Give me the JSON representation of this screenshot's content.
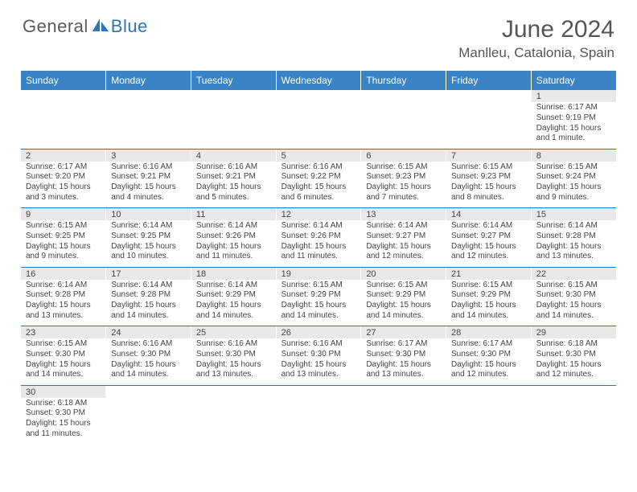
{
  "brand": {
    "part1": "General",
    "part2": "Blue"
  },
  "title": "June 2024",
  "location": "Manlleu, Catalonia, Spain",
  "colors": {
    "header_bg": "#3a83c4",
    "header_text": "#ffffff",
    "daynum_bg": "#e8e8e8",
    "text": "#444444",
    "rule": "#2d74b8",
    "brand_gray": "#5a5a5a",
    "brand_blue": "#2d74b8",
    "title_color": "#555555"
  },
  "typography": {
    "title_fontsize": 30,
    "location_fontsize": 17,
    "dayhead_fontsize": 12,
    "daynum_fontsize": 11,
    "body_fontsize": 10
  },
  "day_headers": [
    "Sunday",
    "Monday",
    "Tuesday",
    "Wednesday",
    "Thursday",
    "Friday",
    "Saturday"
  ],
  "weeks": [
    [
      null,
      null,
      null,
      null,
      null,
      null,
      {
        "n": "1",
        "sunrise": "Sunrise: 6:17 AM",
        "sunset": "Sunset: 9:19 PM",
        "daylight1": "Daylight: 15 hours",
        "daylight2": "and 1 minute."
      }
    ],
    [
      {
        "n": "2",
        "sunrise": "Sunrise: 6:17 AM",
        "sunset": "Sunset: 9:20 PM",
        "daylight1": "Daylight: 15 hours",
        "daylight2": "and 3 minutes."
      },
      {
        "n": "3",
        "sunrise": "Sunrise: 6:16 AM",
        "sunset": "Sunset: 9:21 PM",
        "daylight1": "Daylight: 15 hours",
        "daylight2": "and 4 minutes."
      },
      {
        "n": "4",
        "sunrise": "Sunrise: 6:16 AM",
        "sunset": "Sunset: 9:21 PM",
        "daylight1": "Daylight: 15 hours",
        "daylight2": "and 5 minutes."
      },
      {
        "n": "5",
        "sunrise": "Sunrise: 6:16 AM",
        "sunset": "Sunset: 9:22 PM",
        "daylight1": "Daylight: 15 hours",
        "daylight2": "and 6 minutes."
      },
      {
        "n": "6",
        "sunrise": "Sunrise: 6:15 AM",
        "sunset": "Sunset: 9:23 PM",
        "daylight1": "Daylight: 15 hours",
        "daylight2": "and 7 minutes."
      },
      {
        "n": "7",
        "sunrise": "Sunrise: 6:15 AM",
        "sunset": "Sunset: 9:23 PM",
        "daylight1": "Daylight: 15 hours",
        "daylight2": "and 8 minutes."
      },
      {
        "n": "8",
        "sunrise": "Sunrise: 6:15 AM",
        "sunset": "Sunset: 9:24 PM",
        "daylight1": "Daylight: 15 hours",
        "daylight2": "and 9 minutes."
      }
    ],
    [
      {
        "n": "9",
        "sunrise": "Sunrise: 6:15 AM",
        "sunset": "Sunset: 9:25 PM",
        "daylight1": "Daylight: 15 hours",
        "daylight2": "and 9 minutes."
      },
      {
        "n": "10",
        "sunrise": "Sunrise: 6:14 AM",
        "sunset": "Sunset: 9:25 PM",
        "daylight1": "Daylight: 15 hours",
        "daylight2": "and 10 minutes."
      },
      {
        "n": "11",
        "sunrise": "Sunrise: 6:14 AM",
        "sunset": "Sunset: 9:26 PM",
        "daylight1": "Daylight: 15 hours",
        "daylight2": "and 11 minutes."
      },
      {
        "n": "12",
        "sunrise": "Sunrise: 6:14 AM",
        "sunset": "Sunset: 9:26 PM",
        "daylight1": "Daylight: 15 hours",
        "daylight2": "and 11 minutes."
      },
      {
        "n": "13",
        "sunrise": "Sunrise: 6:14 AM",
        "sunset": "Sunset: 9:27 PM",
        "daylight1": "Daylight: 15 hours",
        "daylight2": "and 12 minutes."
      },
      {
        "n": "14",
        "sunrise": "Sunrise: 6:14 AM",
        "sunset": "Sunset: 9:27 PM",
        "daylight1": "Daylight: 15 hours",
        "daylight2": "and 12 minutes."
      },
      {
        "n": "15",
        "sunrise": "Sunrise: 6:14 AM",
        "sunset": "Sunset: 9:28 PM",
        "daylight1": "Daylight: 15 hours",
        "daylight2": "and 13 minutes."
      }
    ],
    [
      {
        "n": "16",
        "sunrise": "Sunrise: 6:14 AM",
        "sunset": "Sunset: 9:28 PM",
        "daylight1": "Daylight: 15 hours",
        "daylight2": "and 13 minutes."
      },
      {
        "n": "17",
        "sunrise": "Sunrise: 6:14 AM",
        "sunset": "Sunset: 9:28 PM",
        "daylight1": "Daylight: 15 hours",
        "daylight2": "and 14 minutes."
      },
      {
        "n": "18",
        "sunrise": "Sunrise: 6:14 AM",
        "sunset": "Sunset: 9:29 PM",
        "daylight1": "Daylight: 15 hours",
        "daylight2": "and 14 minutes."
      },
      {
        "n": "19",
        "sunrise": "Sunrise: 6:15 AM",
        "sunset": "Sunset: 9:29 PM",
        "daylight1": "Daylight: 15 hours",
        "daylight2": "and 14 minutes."
      },
      {
        "n": "20",
        "sunrise": "Sunrise: 6:15 AM",
        "sunset": "Sunset: 9:29 PM",
        "daylight1": "Daylight: 15 hours",
        "daylight2": "and 14 minutes."
      },
      {
        "n": "21",
        "sunrise": "Sunrise: 6:15 AM",
        "sunset": "Sunset: 9:29 PM",
        "daylight1": "Daylight: 15 hours",
        "daylight2": "and 14 minutes."
      },
      {
        "n": "22",
        "sunrise": "Sunrise: 6:15 AM",
        "sunset": "Sunset: 9:30 PM",
        "daylight1": "Daylight: 15 hours",
        "daylight2": "and 14 minutes."
      }
    ],
    [
      {
        "n": "23",
        "sunrise": "Sunrise: 6:15 AM",
        "sunset": "Sunset: 9:30 PM",
        "daylight1": "Daylight: 15 hours",
        "daylight2": "and 14 minutes."
      },
      {
        "n": "24",
        "sunrise": "Sunrise: 6:16 AM",
        "sunset": "Sunset: 9:30 PM",
        "daylight1": "Daylight: 15 hours",
        "daylight2": "and 14 minutes."
      },
      {
        "n": "25",
        "sunrise": "Sunrise: 6:16 AM",
        "sunset": "Sunset: 9:30 PM",
        "daylight1": "Daylight: 15 hours",
        "daylight2": "and 13 minutes."
      },
      {
        "n": "26",
        "sunrise": "Sunrise: 6:16 AM",
        "sunset": "Sunset: 9:30 PM",
        "daylight1": "Daylight: 15 hours",
        "daylight2": "and 13 minutes."
      },
      {
        "n": "27",
        "sunrise": "Sunrise: 6:17 AM",
        "sunset": "Sunset: 9:30 PM",
        "daylight1": "Daylight: 15 hours",
        "daylight2": "and 13 minutes."
      },
      {
        "n": "28",
        "sunrise": "Sunrise: 6:17 AM",
        "sunset": "Sunset: 9:30 PM",
        "daylight1": "Daylight: 15 hours",
        "daylight2": "and 12 minutes."
      },
      {
        "n": "29",
        "sunrise": "Sunrise: 6:18 AM",
        "sunset": "Sunset: 9:30 PM",
        "daylight1": "Daylight: 15 hours",
        "daylight2": "and 12 minutes."
      }
    ],
    [
      {
        "n": "30",
        "sunrise": "Sunrise: 6:18 AM",
        "sunset": "Sunset: 9:30 PM",
        "daylight1": "Daylight: 15 hours",
        "daylight2": "and 11 minutes."
      },
      null,
      null,
      null,
      null,
      null,
      null
    ]
  ]
}
